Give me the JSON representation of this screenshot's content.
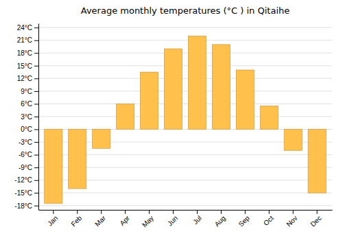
{
  "chart_data": {
    "type": "bar",
    "title": "Average monthly temperatures (°C ) in Qitaihe",
    "categories": [
      "Jan",
      "Feb",
      "Mar",
      "Apr",
      "May",
      "Jun",
      "Jul",
      "Aug",
      "Sep",
      "Oct",
      "Nov",
      "Dec"
    ],
    "values": [
      -17.5,
      -14.0,
      -4.5,
      6.0,
      13.5,
      19.0,
      22.0,
      20.0,
      14.0,
      5.5,
      -5.0,
      -15.0
    ],
    "color": "#FFC04C",
    "ylim": [
      -19,
      25
    ],
    "yticks": [
      {
        "value": -18,
        "label": "-18°C"
      },
      {
        "value": -15,
        "label": "-15°C"
      },
      {
        "value": -12,
        "label": "-12°C"
      },
      {
        "value": -9,
        "label": "-9°C"
      },
      {
        "value": -6,
        "label": "-6°C"
      },
      {
        "value": -3,
        "label": "-3°C"
      },
      {
        "value": 0,
        "label": "0°C"
      },
      {
        "value": 3,
        "label": "3°C"
      },
      {
        "value": 6,
        "label": "6°C"
      },
      {
        "value": 9,
        "label": "9°C"
      },
      {
        "value": 12,
        "label": "12°C"
      },
      {
        "value": 15,
        "label": "15°C"
      },
      {
        "value": 18,
        "label": "18°C"
      },
      {
        "value": 21,
        "label": "21°C"
      },
      {
        "value": 24,
        "label": "24°C"
      }
    ],
    "grid": true
  }
}
